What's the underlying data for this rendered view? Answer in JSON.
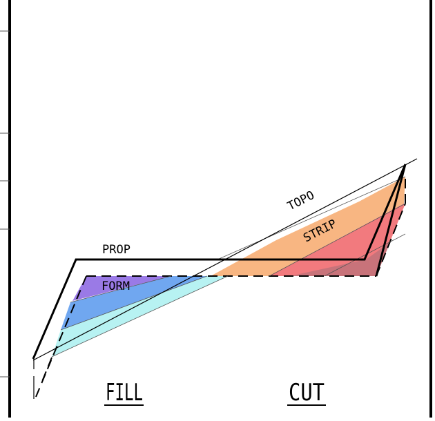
{
  "diagram": {
    "labels": {
      "prop": "PROP",
      "topo": "TOPO",
      "strip": "STRIP",
      "form": "FORM",
      "fill": "FILL",
      "cut": "CUT"
    },
    "colors": {
      "frame": "#000000",
      "fill_purple": "#9a7ae6",
      "fill_blue": "#70a7f0",
      "fill_cyan": "#b7f2f2",
      "cut_orange": "#f8b682",
      "cut_red": "#f27a7e",
      "cut_overlap": "#c8737a"
    }
  }
}
